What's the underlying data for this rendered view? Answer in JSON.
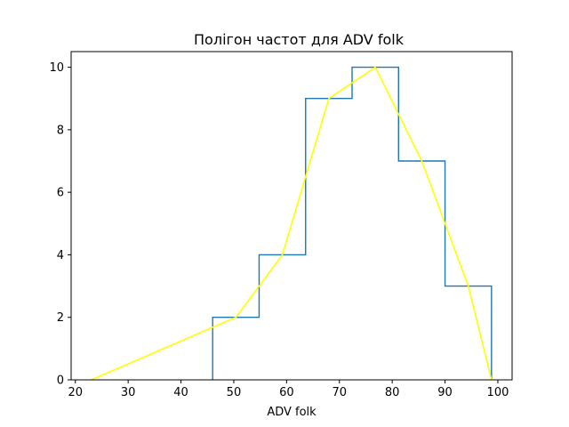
{
  "chart_data": {
    "type": "line",
    "title": "Полігон частот для ADV folk",
    "xlabel": "ADV folk",
    "ylabel": "",
    "xlim": [
      19.2,
      102.7
    ],
    "ylim": [
      0,
      10.5
    ],
    "grid": false,
    "x_ticks": [
      20,
      30,
      40,
      50,
      60,
      70,
      80,
      90,
      100
    ],
    "y_ticks": [
      0,
      2,
      4,
      6,
      8,
      10
    ],
    "series": [
      {
        "style": "step",
        "color": "#1f77b4",
        "bin_edges": [
          46.0,
          54.8,
          63.6,
          72.4,
          81.2,
          90.0,
          98.8
        ],
        "counts": [
          2,
          4,
          9,
          10,
          7,
          3
        ]
      },
      {
        "style": "line",
        "color": "#ffff00",
        "x": [
          23.0,
          50.4,
          59.2,
          68.0,
          76.8,
          85.6,
          94.4,
          98.8
        ],
        "y": [
          0,
          2,
          4,
          9,
          10,
          7,
          3,
          0
        ]
      }
    ]
  }
}
